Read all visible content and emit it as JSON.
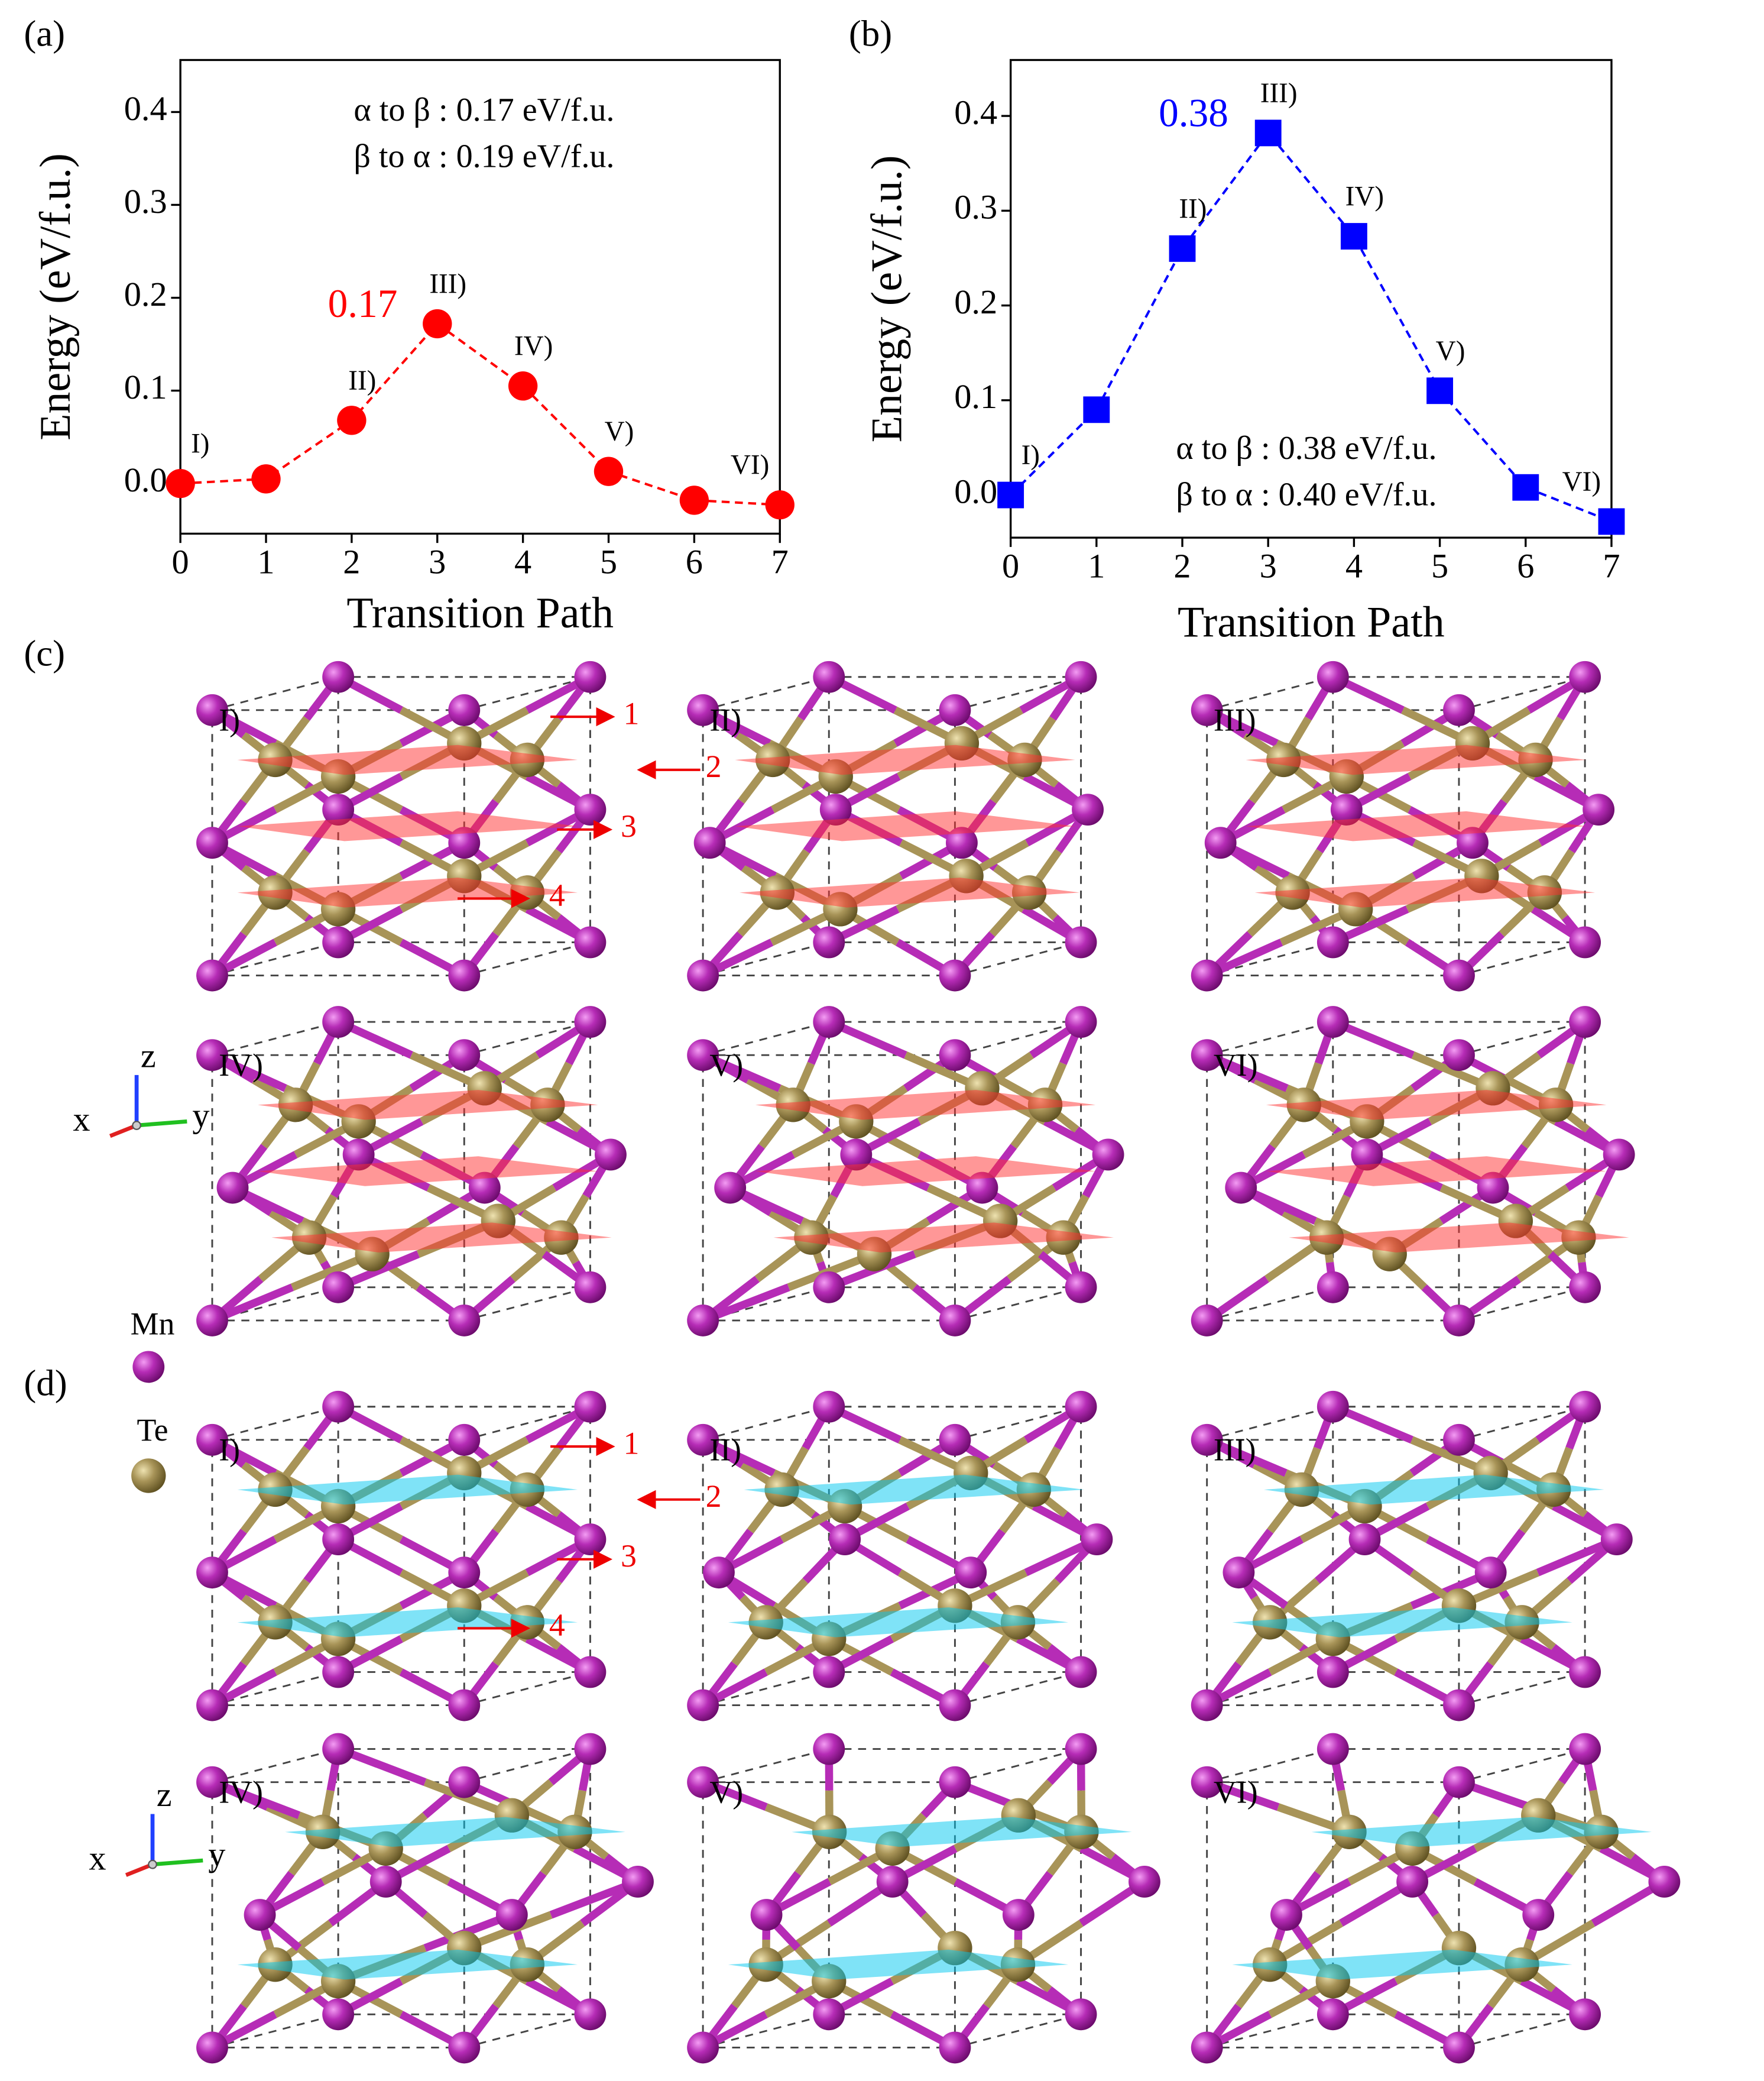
{
  "chart_data": [
    {
      "type": "line",
      "panel_label": "(a)",
      "y_label": "Energy (eV/f.u.)",
      "x_label": "Transition Path",
      "x": [
        0,
        1,
        2,
        3,
        4,
        5,
        6,
        7
      ],
      "values": [
        0,
        0.005,
        0.068,
        0.172,
        0.105,
        0.013,
        -0.018,
        -0.023
      ],
      "color": "#ff0000",
      "marker": "circle",
      "point_labels": [
        "I)",
        null,
        "II)",
        "III)",
        "IV)",
        "V)",
        null,
        "VI)"
      ],
      "value_labels": [
        null,
        null,
        null,
        "0.17",
        null,
        null,
        null,
        null
      ],
      "annotations": [
        "α to β : 0.17 eV/f.u.",
        "β to α : 0.19 eV/f.u."
      ],
      "xlim": [
        0,
        7
      ],
      "xticks": [
        0,
        1,
        2,
        3,
        4,
        5,
        6,
        7
      ],
      "ylim": [
        -0.054,
        0.456
      ],
      "yticks": [
        {
          "value": 0,
          "label": "0.0"
        },
        0.1,
        0.2,
        0.3,
        0.4
      ]
    },
    {
      "type": "line",
      "panel_label": "(b)",
      "y_label": "Energy (eV/f.u.)",
      "x_label": "Transition Path",
      "x": [
        0,
        1,
        2,
        3,
        4,
        5,
        6,
        7
      ],
      "values": [
        0,
        0.09,
        0.26,
        0.382,
        0.273,
        0.11,
        0.008,
        -0.028
      ],
      "color": "#0000ff",
      "marker": "square",
      "point_labels": [
        "I)",
        null,
        "II)",
        "III)",
        "IV)",
        "V)",
        null,
        "VI)"
      ],
      "value_labels": [
        null,
        null,
        null,
        "0.38",
        null,
        null,
        null,
        null
      ],
      "annotations": [
        "α to β : 0.38 eV/f.u.",
        "β to α : 0.40 eV/f.u."
      ],
      "xlim": [
        0,
        7
      ],
      "xticks": [
        0,
        1,
        2,
        3,
        4,
        5,
        6,
        7
      ],
      "ylim": [
        -0.045,
        0.459
      ],
      "yticks": [
        {
          "value": 0,
          "label": "0.0"
        },
        0.1,
        0.2,
        0.3,
        0.4
      ]
    }
  ],
  "structures": {
    "c": {
      "label": "(c)",
      "states": [
        "I)",
        "II)",
        "III)",
        "IV)",
        "V)",
        "VI)"
      ],
      "markers": [
        "1",
        "2",
        "3",
        "4"
      ]
    },
    "d": {
      "label": "(d)",
      "states": [
        "I)",
        "II)",
        "III)",
        "IV)",
        "V)",
        "VI)"
      ],
      "markers": [
        "1",
        "2",
        "3",
        "4"
      ]
    },
    "legend": {
      "mn": "Mn",
      "te": "Te"
    },
    "axes": {
      "x": "x",
      "y": "y",
      "z": "z"
    }
  }
}
